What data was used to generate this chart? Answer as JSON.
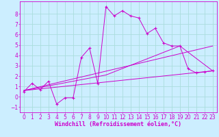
{
  "background_color": "#cceeff",
  "grid_color": "#aadddd",
  "line_color": "#cc00cc",
  "xlabel": "Windchill (Refroidissement éolien,°C)",
  "xlabel_fontsize": 6.0,
  "tick_fontsize": 5.5,
  "ylim": [
    -1.5,
    9.2
  ],
  "xlim": [
    -0.5,
    23.5
  ],
  "yticks": [
    -1,
    0,
    1,
    2,
    3,
    4,
    5,
    6,
    7,
    8
  ],
  "xticks": [
    0,
    1,
    2,
    3,
    4,
    5,
    6,
    7,
    8,
    9,
    10,
    11,
    12,
    13,
    14,
    15,
    16,
    17,
    18,
    19,
    20,
    21,
    22,
    23
  ],
  "line1_x": [
    0,
    1,
    2,
    3,
    4,
    5,
    6,
    7,
    8,
    9,
    10,
    11,
    12,
    13,
    14,
    15,
    16,
    17,
    18,
    19,
    20,
    21,
    22,
    23
  ],
  "line1_y": [
    0.5,
    1.3,
    0.7,
    1.5,
    -0.7,
    -0.1,
    -0.1,
    3.8,
    4.7,
    1.3,
    8.7,
    7.8,
    8.3,
    7.8,
    7.6,
    6.1,
    6.6,
    5.2,
    4.9,
    4.9,
    2.7,
    2.3,
    2.4,
    2.5
  ],
  "line2_x": [
    0,
    23
  ],
  "line2_y": [
    0.6,
    2.5
  ],
  "line3_x": [
    0,
    23
  ],
  "line3_y": [
    0.6,
    4.9
  ],
  "line4_x": [
    0,
    10,
    19,
    23
  ],
  "line4_y": [
    0.6,
    2.1,
    4.9,
    2.5
  ]
}
